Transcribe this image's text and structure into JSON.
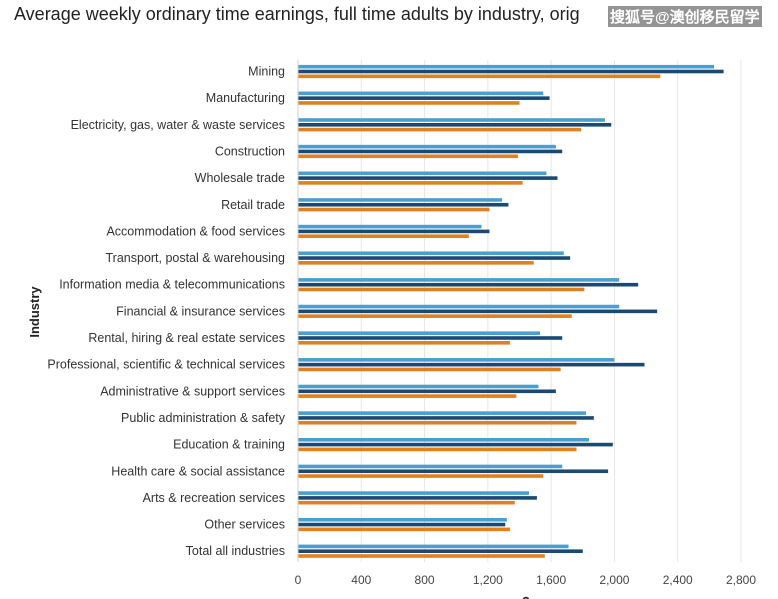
{
  "header": {
    "title": "Average weekly ordinary time earnings, full time adults by industry, orig",
    "watermark": "搜狐号@澳创移民留学"
  },
  "chart_data": {
    "type": "bar",
    "orientation": "horizontal",
    "title": "Average weekly ordinary time earnings, full time adults by industry, orig",
    "ylabel": "Industry",
    "xlabel": "$",
    "xlim": [
      0,
      2800
    ],
    "xticks": [
      "0",
      "400",
      "800",
      "1,200",
      "1,600",
      "2,000",
      "2,400",
      "2,800"
    ],
    "grid": true,
    "categories": [
      "Mining",
      "Manufacturing",
      "Electricity, gas, water & waste services",
      "Construction",
      "Wholesale trade",
      "Retail trade",
      "Accommodation & food services",
      "Transport, postal & warehousing",
      "Information media & telecommunications",
      "Financial & insurance services",
      "Rental, hiring & real estate services",
      "Professional, scientific & technical services",
      "Administrative & support services",
      "Public administration & safety",
      "Education & training",
      "Health care & social assistance",
      "Arts & recreation services",
      "Other services",
      "Total all industries"
    ],
    "series": [
      {
        "color": "#4a9fd0",
        "values": [
          2630,
          1550,
          1940,
          1630,
          1570,
          1290,
          1160,
          1680,
          2030,
          2030,
          1530,
          2000,
          1520,
          1820,
          1840,
          1670,
          1460,
          1320,
          1710
        ]
      },
      {
        "color": "#1a4a72",
        "values": [
          2690,
          1590,
          1980,
          1670,
          1640,
          1330,
          1210,
          1720,
          2150,
          2270,
          1670,
          2190,
          1630,
          1870,
          1990,
          1960,
          1510,
          1310,
          1800
        ]
      },
      {
        "color": "#e0801e",
        "values": [
          2290,
          1400,
          1790,
          1390,
          1420,
          1210,
          1080,
          1490,
          1810,
          1730,
          1340,
          1660,
          1380,
          1760,
          1760,
          1550,
          1370,
          1340,
          1560
        ]
      }
    ]
  }
}
